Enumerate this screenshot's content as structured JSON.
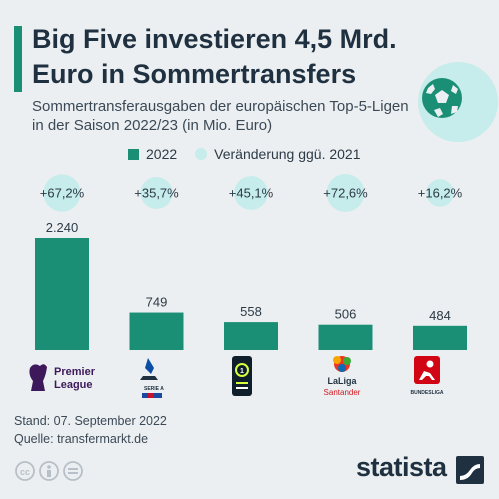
{
  "header": {
    "title": "Big Five investieren 4,5 Mrd. Euro in Sommertransfers",
    "subtitle": "Sommertransferausgaben der europäischen Top-5-Ligen in der Saison 2022/23 (in Mio. Euro)"
  },
  "legend": {
    "bar_label": "2022",
    "change_label": "Veränderung ggü. 2021"
  },
  "footer": {
    "stand": "Stand: 07. September 2022",
    "quelle": "Quelle: transfermarkt.de"
  },
  "brand": "statista",
  "colors": {
    "bar": "#1a8f76",
    "bubble": "#c6ecec",
    "background": "#eceff1"
  },
  "chart_data": {
    "type": "bar",
    "categories": [
      "Premier League",
      "Serie A",
      "Ligue 1",
      "LaLiga Santander",
      "Bundesliga"
    ],
    "series": [
      {
        "values": [
          2240,
          749,
          558,
          506,
          484
        ],
        "value_labels": [
          "2.240",
          "749",
          "558",
          "506",
          "484"
        ]
      }
    ],
    "change_labels": [
      "+67,2%",
      "+35,7%",
      "+45,1%",
      "+72,6%",
      "+16,2%"
    ],
    "change_values": [
      67.2,
      35.7,
      45.1,
      72.6,
      16.2
    ],
    "ylim": [
      0,
      2240
    ],
    "grid": false
  }
}
